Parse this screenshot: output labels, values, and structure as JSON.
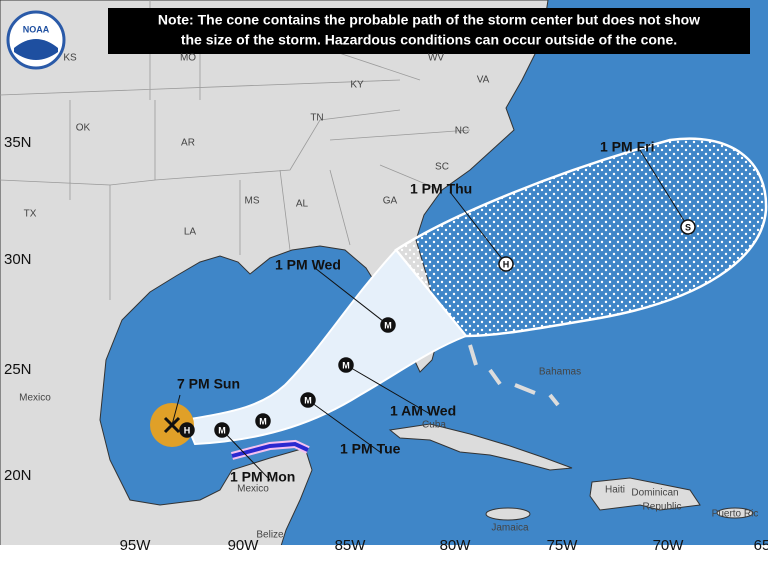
{
  "note": [
    "Note: The cone contains the probable path of the storm center but does not show",
    "the size of the storm. Hazardous conditions can occur outside of the cone."
  ],
  "logo": "NOAA",
  "lat_labels": [
    "35N",
    "30N",
    "25N",
    "20N"
  ],
  "lon_labels": [
    "95W",
    "90W",
    "85W",
    "80W",
    "75W",
    "70W",
    "65"
  ],
  "place_labels": [
    "MO",
    "KS",
    "WV",
    "KY",
    "VA",
    "OK",
    "AR",
    "TN",
    "NC",
    "SC",
    "TX",
    "MS",
    "AL",
    "GA",
    "LA",
    "Mexico",
    "Bahamas",
    "Cuba",
    "Haiti",
    "Dominican",
    "Republic",
    "Jamaica",
    "Belize",
    "Mexico",
    "Puerto Ric"
  ],
  "current_position": {
    "time": "7 PM Sun"
  },
  "forecast_points": [
    {
      "symbol": "H"
    },
    {
      "symbol": "M",
      "time": "1 PM Mon"
    },
    {
      "symbol": "M"
    },
    {
      "symbol": "M",
      "time": "1 PM Tue"
    },
    {
      "symbol": "M",
      "time": "1 AM Wed"
    },
    {
      "symbol": "M",
      "time": "1 PM Wed"
    },
    {
      "symbol": "H",
      "time": "1 PM Thu"
    },
    {
      "symbol": "S",
      "time": "1 PM Fri"
    }
  ]
}
